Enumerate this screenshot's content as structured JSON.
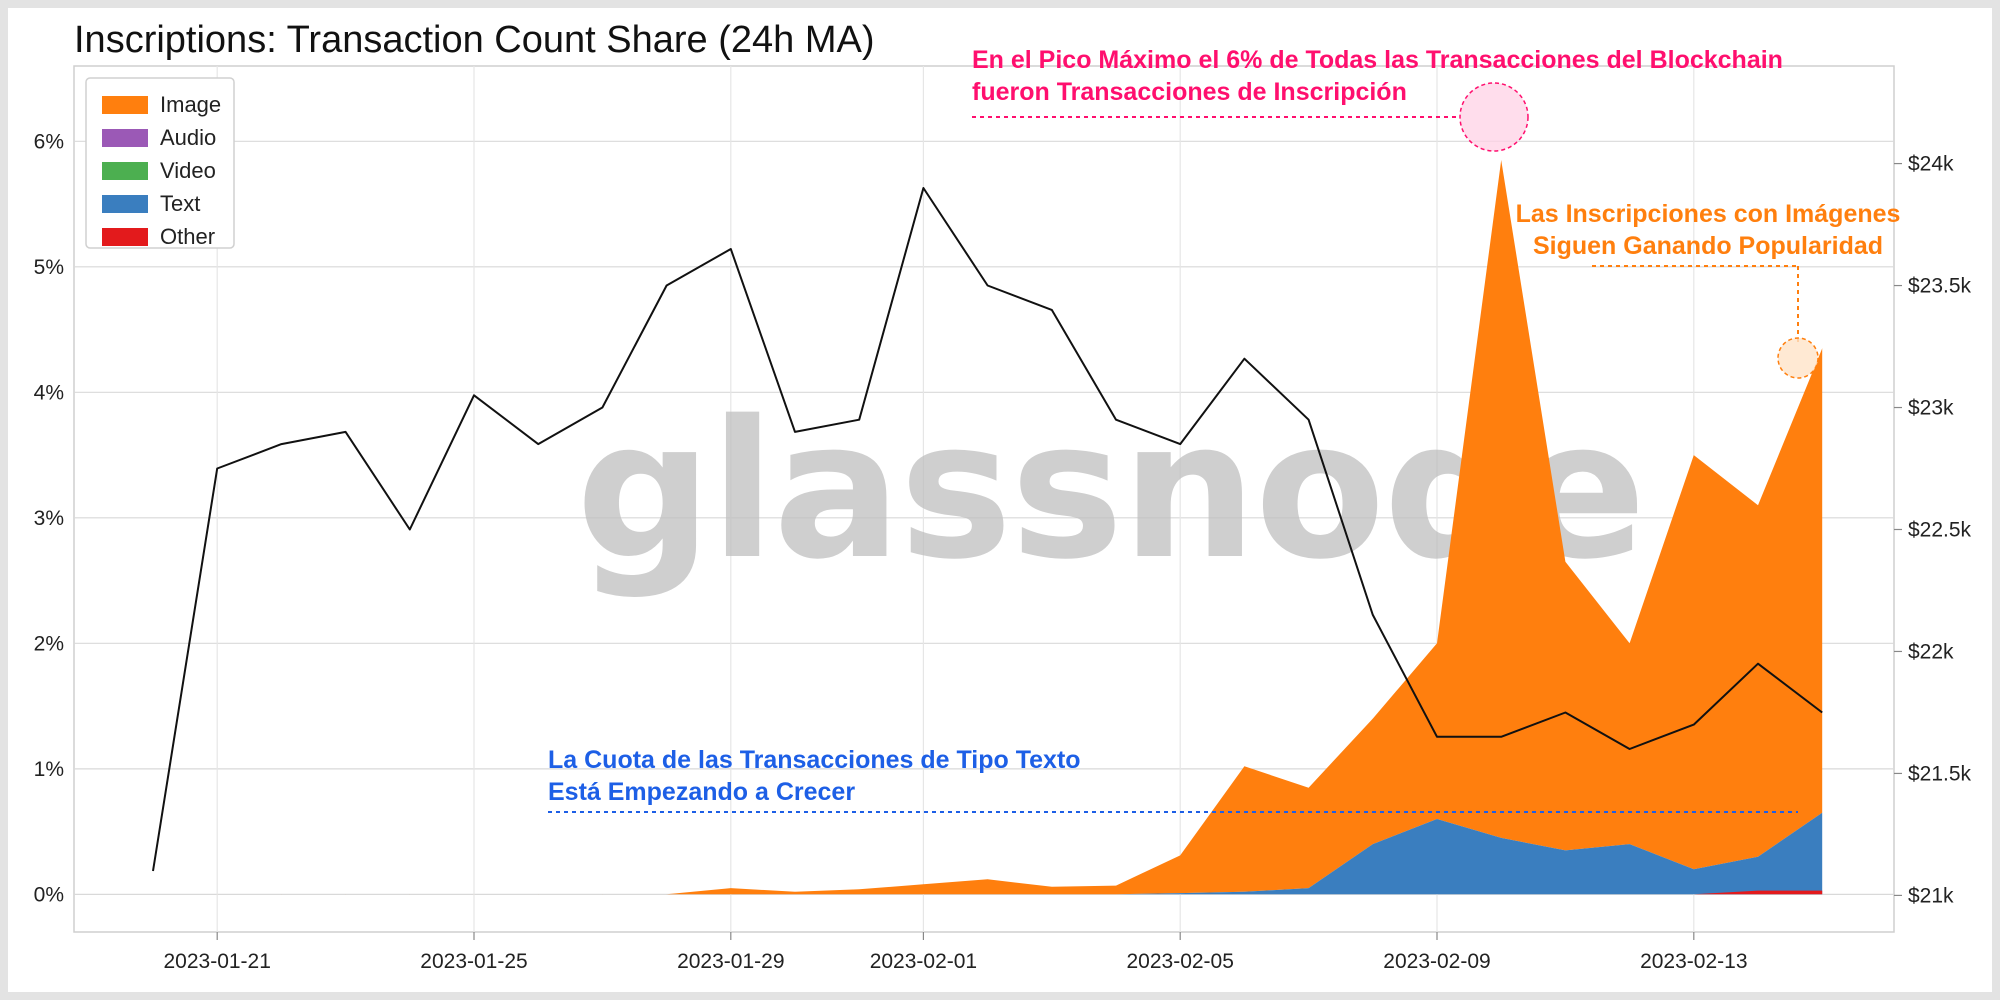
{
  "watermark": "glassnode",
  "colors": {
    "image": "#ff7f0e",
    "audio": "#9b59b6",
    "video": "#4caf50",
    "text": "#3a7ebf",
    "other": "#e31a1c",
    "price": "#111111",
    "annotation_pink": "#ff0f6e",
    "annotation_orange": "#ff7f0e",
    "annotation_blue": "#1d5fe6"
  },
  "chart_data": {
    "type": "area",
    "title": "Inscriptions: Transaction Count Share (24h MA)",
    "xlabel": "",
    "ylabel": "",
    "x_start": "2023-01-20",
    "x_end": "2023-02-15",
    "x_ticks": [
      "2023-01-21",
      "2023-01-25",
      "2023-01-29",
      "2023-02-01",
      "2023-02-05",
      "2023-02-09",
      "2023-02-13"
    ],
    "y_left": {
      "ticks": [
        "0%",
        "1%",
        "2%",
        "3%",
        "4%",
        "5%",
        "6%"
      ],
      "lim": [
        -0.3,
        6.6
      ],
      "unit": "%"
    },
    "y_right": {
      "ticks": [
        "$21k",
        "$21.5k",
        "$22k",
        "$22.5k",
        "$23k",
        "$23.5k",
        "$24k"
      ],
      "lim": [
        20.85,
        24.4
      ],
      "unit": "k USD"
    },
    "grid": true,
    "legend_position": "top-left",
    "legend": [
      "Image",
      "Audio",
      "Video",
      "Text",
      "Other"
    ],
    "series": [
      {
        "name": "Image",
        "type": "stacked_area",
        "x": [
          "2023-01-21",
          "2023-01-22",
          "2023-01-23",
          "2023-01-24",
          "2023-01-25",
          "2023-01-26",
          "2023-01-27",
          "2023-01-28",
          "2023-01-29",
          "2023-01-30",
          "2023-01-31",
          "2023-02-01",
          "2023-02-02",
          "2023-02-03",
          "2023-02-04",
          "2023-02-05",
          "2023-02-06",
          "2023-02-07",
          "2023-02-08",
          "2023-02-09",
          "2023-02-10",
          "2023-02-11",
          "2023-02-12",
          "2023-02-13",
          "2023-02-14",
          "2023-02-15"
        ],
        "values": [
          0.0,
          0.0,
          0.0,
          0.0,
          0.0,
          0.0,
          0.0,
          0.0,
          0.05,
          0.02,
          0.04,
          0.08,
          0.12,
          0.06,
          0.07,
          0.3,
          1.0,
          0.8,
          1.0,
          1.4,
          5.4,
          2.3,
          1.6,
          3.3,
          2.8,
          3.7
        ]
      },
      {
        "name": "Text",
        "type": "stacked_area",
        "x": [
          "2023-01-21",
          "2023-01-22",
          "2023-01-23",
          "2023-01-24",
          "2023-01-25",
          "2023-01-26",
          "2023-01-27",
          "2023-01-28",
          "2023-01-29",
          "2023-01-30",
          "2023-01-31",
          "2023-02-01",
          "2023-02-02",
          "2023-02-03",
          "2023-02-04",
          "2023-02-05",
          "2023-02-06",
          "2023-02-07",
          "2023-02-08",
          "2023-02-09",
          "2023-02-10",
          "2023-02-11",
          "2023-02-12",
          "2023-02-13",
          "2023-02-14",
          "2023-02-15"
        ],
        "values": [
          0,
          0,
          0,
          0,
          0,
          0,
          0,
          0,
          0,
          0,
          0,
          0,
          0,
          0,
          0,
          0.01,
          0.02,
          0.05,
          0.4,
          0.6,
          0.45,
          0.35,
          0.4,
          0.2,
          0.3,
          0.65
        ]
      },
      {
        "name": "Other",
        "type": "stacked_area",
        "x": [
          "2023-02-13",
          "2023-02-14",
          "2023-02-15"
        ],
        "values": [
          0.0,
          0.03,
          0.03
        ]
      },
      {
        "name": "BTC Price",
        "type": "line",
        "axis": "right",
        "x": [
          "2023-01-20",
          "2023-01-21",
          "2023-01-22",
          "2023-01-23",
          "2023-01-24",
          "2023-01-25",
          "2023-01-26",
          "2023-01-27",
          "2023-01-28",
          "2023-01-29",
          "2023-01-30",
          "2023-01-31",
          "2023-02-01",
          "2023-02-02",
          "2023-02-03",
          "2023-02-04",
          "2023-02-05",
          "2023-02-06",
          "2023-02-07",
          "2023-02-08",
          "2023-02-09",
          "2023-02-10",
          "2023-02-11",
          "2023-02-12",
          "2023-02-13",
          "2023-02-14",
          "2023-02-15"
        ],
        "values": [
          21.1,
          22.75,
          22.85,
          22.9,
          22.5,
          23.05,
          22.85,
          23.0,
          23.5,
          23.65,
          22.9,
          22.95,
          23.9,
          23.5,
          23.4,
          22.95,
          22.85,
          23.2,
          22.95,
          22.15,
          21.65,
          21.65,
          21.75,
          21.6,
          21.7,
          21.95,
          21.75
        ]
      }
    ],
    "annotations": [
      {
        "text": [
          "En el Pico Máximo el 6% de Todas las Transacciones del Blockchain",
          "fueron Transacciones de Inscripción"
        ],
        "color": "#ff0f6e"
      },
      {
        "text": [
          "Las Inscripciones con Imágenes",
          "Siguen Ganando Popularidad"
        ],
        "color": "#ff7f0e"
      },
      {
        "text": [
          "La Cuota de las Transacciones de Tipo Texto",
          "Está Empezando a Crecer"
        ],
        "color": "#1d5fe6"
      }
    ]
  }
}
